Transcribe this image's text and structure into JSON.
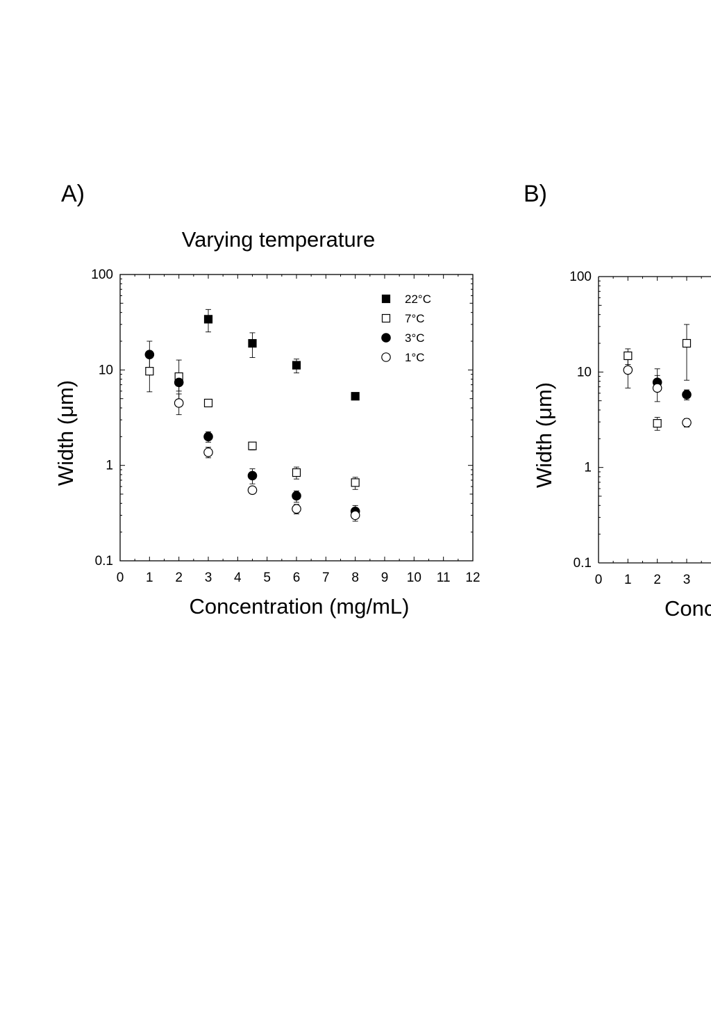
{
  "chart_data": [
    {
      "panel_label": "A)",
      "type": "scatter",
      "title": "Varying temperature",
      "xlabel": "Concentration (mg/mL)",
      "ylabel": "Width (μm)",
      "xlim": [
        0,
        12
      ],
      "ylim": [
        0.1,
        100
      ],
      "yscale": "log",
      "x_ticks": [
        0,
        1,
        2,
        3,
        4,
        5,
        6,
        7,
        8,
        9,
        10,
        11,
        12
      ],
      "y_ticks": [
        0.1,
        1,
        10,
        100
      ],
      "y_tick_labels": [
        "0.1",
        "1",
        "10",
        "100"
      ],
      "grid": false,
      "legend_position": "top-right",
      "series": [
        {
          "name": "22°C",
          "marker": "square",
          "fill": "filled",
          "points": [
            {
              "x": 3,
              "y": 34,
              "err_lo": 25,
              "err_hi": 43
            },
            {
              "x": 4.5,
              "y": 19,
              "err_lo": 13.5,
              "err_hi": 24.5
            },
            {
              "x": 6,
              "y": 11.2,
              "err_lo": 9.3,
              "err_hi": 13
            },
            {
              "x": 8,
              "y": 5.3,
              "err_lo": 5.1,
              "err_hi": 5.5
            }
          ]
        },
        {
          "name": "7°C",
          "marker": "square",
          "fill": "open",
          "points": [
            {
              "x": 1,
              "y": 9.7,
              "err_lo": 5.9,
              "err_hi": 13.4
            },
            {
              "x": 2,
              "y": 8.5,
              "err_lo": 4.5,
              "err_hi": 12.7
            },
            {
              "x": 3,
              "y": 4.5,
              "err_lo": 4.1,
              "err_hi": 4.9
            },
            {
              "x": 4.5,
              "y": 1.6,
              "err_lo": 1.45,
              "err_hi": 1.75
            },
            {
              "x": 6,
              "y": 0.84,
              "err_lo": 0.72,
              "err_hi": 0.96
            },
            {
              "x": 8,
              "y": 0.66,
              "err_lo": 0.56,
              "err_hi": 0.75
            }
          ]
        },
        {
          "name": "3°C",
          "marker": "circle",
          "fill": "filled",
          "points": [
            {
              "x": 1,
              "y": 14.5,
              "err_lo": 9.5,
              "err_hi": 20
            },
            {
              "x": 2,
              "y": 7.4,
              "err_lo": 6.0,
              "err_hi": 8.8
            },
            {
              "x": 3,
              "y": 2.0,
              "err_lo": 1.75,
              "err_hi": 2.25
            },
            {
              "x": 4.5,
              "y": 0.78,
              "err_lo": 0.64,
              "err_hi": 0.92
            },
            {
              "x": 6,
              "y": 0.48,
              "err_lo": 0.41,
              "err_hi": 0.54
            },
            {
              "x": 8,
              "y": 0.33,
              "err_lo": 0.3,
              "err_hi": 0.38
            }
          ]
        },
        {
          "name": "1°C",
          "marker": "circle",
          "fill": "open",
          "points": [
            {
              "x": 2,
              "y": 4.5,
              "err_lo": 3.4,
              "err_hi": 5.6
            },
            {
              "x": 3,
              "y": 1.37,
              "err_lo": 1.2,
              "err_hi": 1.55
            },
            {
              "x": 4.5,
              "y": 0.55,
              "err_lo": 0.51,
              "err_hi": 0.59
            },
            {
              "x": 6,
              "y": 0.35,
              "err_lo": 0.31,
              "err_hi": 0.39
            },
            {
              "x": 8,
              "y": 0.3,
              "err_lo": 0.26,
              "err_hi": 0.34
            }
          ]
        }
      ]
    },
    {
      "panel_label": "B)",
      "type": "scatter",
      "title": "",
      "xlabel": "Conc",
      "ylabel": "Width (μm)",
      "xlim": [
        0,
        12
      ],
      "ylim": [
        0.1,
        100
      ],
      "yscale": "log",
      "x_ticks": [
        0,
        1,
        2,
        3
      ],
      "y_ticks": [
        0.1,
        1,
        10,
        100
      ],
      "y_tick_labels": [
        "0.1",
        "1",
        "10",
        "100"
      ],
      "grid": false,
      "series": [
        {
          "marker": "square",
          "fill": "open",
          "points": [
            {
              "x": 1,
              "y": 14.8,
              "err_lo": 12,
              "err_hi": 17.5
            },
            {
              "x": 2,
              "y": 2.9,
              "err_lo": 2.45,
              "err_hi": 3.35
            },
            {
              "x": 3,
              "y": 20,
              "err_lo": 8.2,
              "err_hi": 31.5
            }
          ]
        },
        {
          "marker": "circle",
          "fill": "filled",
          "points": [
            {
              "x": 2,
              "y": 7.8,
              "err_lo": 6.5,
              "err_hi": 9.2
            },
            {
              "x": 3,
              "y": 5.8,
              "err_lo": 5.1,
              "err_hi": 6.5
            }
          ]
        },
        {
          "marker": "circle",
          "fill": "open",
          "points": [
            {
              "x": 1,
              "y": 10.5,
              "err_lo": 6.8,
              "err_hi": 13.5
            },
            {
              "x": 2,
              "y": 6.8,
              "err_lo": 4.9,
              "err_hi": 10.8
            },
            {
              "x": 3,
              "y": 2.95,
              "err_lo": 2.65,
              "err_hi": 3.25
            }
          ]
        }
      ]
    }
  ]
}
